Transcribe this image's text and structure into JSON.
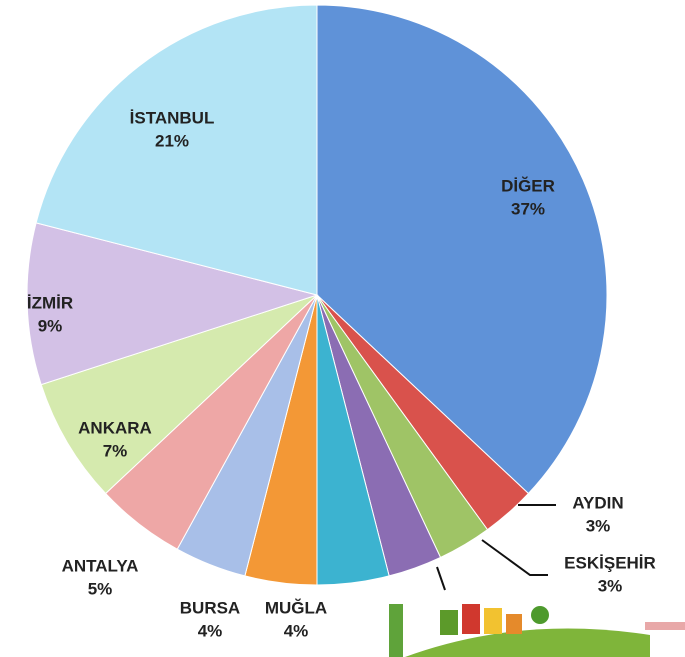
{
  "chart_data": {
    "type": "pie",
    "categories": [
      "DİĞER",
      "AYDIN",
      "ESKİŞEHİR",
      null,
      null,
      "MUĞLA",
      "BURSA",
      "ANTALYA",
      "ANKARA",
      "İZMİR",
      "İSTANBUL"
    ],
    "values": [
      37,
      3,
      3,
      3,
      4,
      4,
      4,
      5,
      7,
      9,
      21
    ],
    "value_labels": [
      "37%",
      "3%",
      "3%",
      null,
      null,
      "4%",
      "4%",
      "5%",
      "7%",
      "9%",
      "21%"
    ],
    "colors": [
      "#5f92d8",
      "#d9524c",
      "#9fc466",
      "#8b6db3",
      "#3cb3d0",
      "#f39836",
      "#a8bfe8",
      "#eea7a6",
      "#d5eaae",
      "#d3c1e6",
      "#b3e4f5"
    ]
  }
}
